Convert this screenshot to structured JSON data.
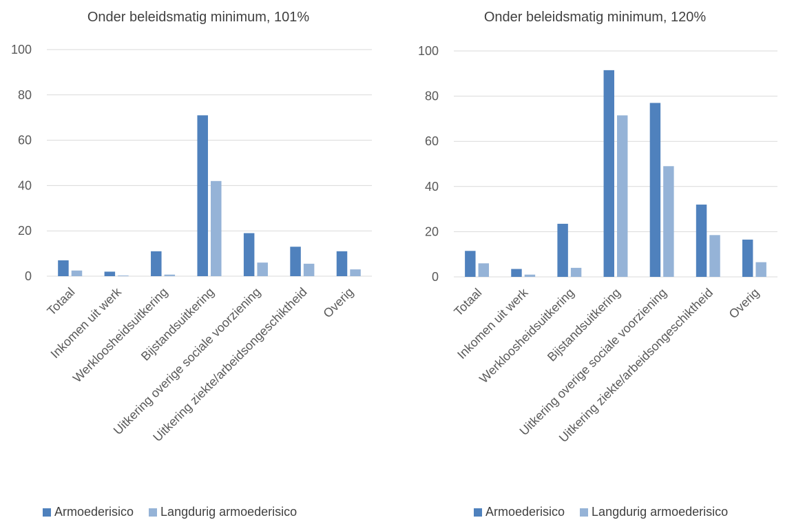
{
  "colors": {
    "primary": "#4f81bd",
    "secondary": "#95b3d7",
    "axis": "#d9d9d9",
    "text": "#595959"
  },
  "legend": {
    "primary_label": "Armoederisico",
    "secondary_label": "Langdurig armoederisico"
  },
  "chart_data": [
    {
      "type": "bar",
      "title": "Onder beleidsmatig minimum, 101%",
      "xlabel": "",
      "ylabel": "",
      "ylim": [
        0,
        100
      ],
      "yticks": [
        "0",
        "20",
        "40",
        "60",
        "80",
        "100"
      ],
      "grid": true,
      "legend_position": "bottom",
      "categories": [
        "Totaal",
        "Inkomen uit werk",
        "Werkloosheidsuitkering",
        "Bijstandsuitkering",
        "Uitkering overige sociale voorziening",
        "Uitkering ziekte/arbeidsongeschiktheid",
        "Overig"
      ],
      "series": [
        {
          "name": "Armoederisico",
          "values": [
            7,
            2,
            11,
            71,
            19,
            13,
            11
          ]
        },
        {
          "name": "Langdurig armoederisico",
          "values": [
            2.5,
            0.3,
            0.7,
            42,
            6,
            5.5,
            3
          ]
        }
      ]
    },
    {
      "type": "bar",
      "title": "Onder beleidsmatig minimum, 120%",
      "xlabel": "",
      "ylabel": "",
      "ylim": [
        0,
        100
      ],
      "yticks": [
        "0",
        "20",
        "40",
        "60",
        "80",
        "100"
      ],
      "grid": true,
      "legend_position": "bottom",
      "categories": [
        "Totaal",
        "Inkomen uit werk",
        "Werkloosheidsuitkering",
        "Bijstandsuitkering",
        "Uitkering overige sociale voorziening",
        "Uitkering ziekte/arbeidsongeschiktheid",
        "Overig"
      ],
      "series": [
        {
          "name": "Armoederisico",
          "values": [
            11.5,
            3.5,
            23.5,
            91.5,
            77,
            32,
            16.5
          ]
        },
        {
          "name": "Langdurig armoederisico",
          "values": [
            6,
            1,
            4,
            71.5,
            49,
            18.5,
            6.5
          ]
        }
      ]
    }
  ]
}
